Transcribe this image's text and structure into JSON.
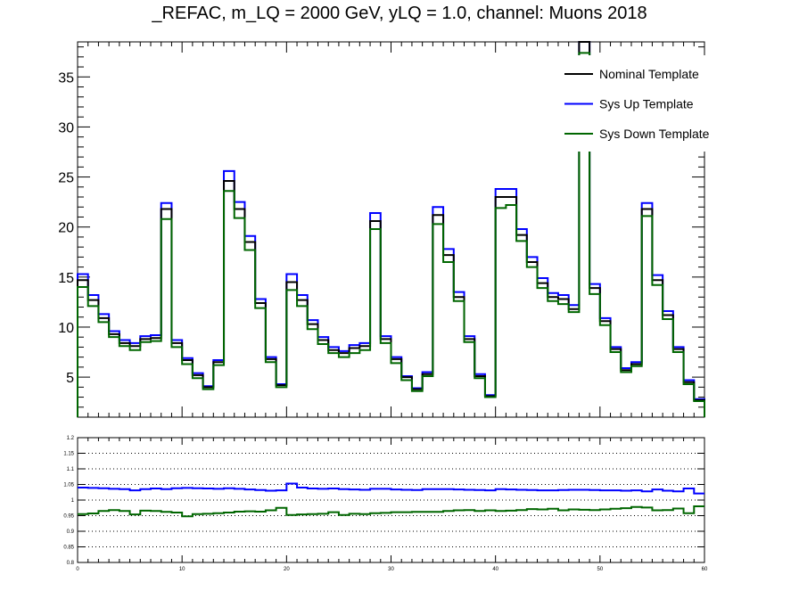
{
  "title": "_REFAC, m_LQ = 2000 GeV, yLQ = 1.0, channel: Muons 2018",
  "chart_data": [
    {
      "type": "line",
      "style": "step histogram",
      "title": "_REFAC, m_LQ = 2000 GeV, yLQ = 1.0, channel: Muons 2018",
      "xlabel": "",
      "ylabel": "",
      "xlim": [
        0,
        60
      ],
      "ylim": [
        1,
        38.5
      ],
      "y_ticks": [
        5,
        10,
        15,
        20,
        25,
        30,
        35
      ],
      "legend_position": "top-right",
      "legend": [
        "Nominal Template",
        "Sys Up Template",
        "Sys Down Template"
      ],
      "series": [
        {
          "name": "Nominal Template",
          "color": "#000000",
          "values": [
            14.7,
            12.7,
            10.9,
            9.3,
            8.4,
            8.1,
            8.8,
            8.9,
            21.8,
            8.4,
            6.7,
            5.2,
            4.0,
            6.5,
            24.6,
            21.8,
            18.5,
            12.4,
            6.8,
            4.2,
            14.5,
            12.7,
            10.3,
            8.7,
            7.7,
            7.4,
            7.9,
            8.1,
            20.6,
            8.8,
            6.8,
            5.0,
            3.8,
            5.3,
            21.2,
            17.2,
            13.0,
            8.8,
            5.1,
            3.1,
            23.0,
            23.0,
            19.2,
            16.5,
            14.4,
            13.0,
            12.8,
            11.8,
            38.5,
            13.9,
            10.6,
            7.8,
            5.7,
            6.3,
            21.8,
            14.7,
            11.2,
            7.8,
            4.5,
            2.7
          ]
        },
        {
          "name": "Sys Up Template",
          "color": "#0000ff",
          "values": [
            15.3,
            13.2,
            11.3,
            9.6,
            8.7,
            8.4,
            9.1,
            9.2,
            22.4,
            8.7,
            6.9,
            5.4,
            4.1,
            6.7,
            25.6,
            22.5,
            19.1,
            12.8,
            7.0,
            4.3,
            15.3,
            13.2,
            10.7,
            9.0,
            8.0,
            7.6,
            8.2,
            8.4,
            21.4,
            9.1,
            7.0,
            5.1,
            3.9,
            5.5,
            22.0,
            17.8,
            13.5,
            9.1,
            5.3,
            3.2,
            23.8,
            23.8,
            19.8,
            17.0,
            14.9,
            13.4,
            13.2,
            12.2,
            39.8,
            14.3,
            10.9,
            8.0,
            5.9,
            6.5,
            22.4,
            15.2,
            11.6,
            8.0,
            4.7,
            2.8
          ]
        },
        {
          "name": "Sys Down Template",
          "color": "#006600",
          "values": [
            14.0,
            12.1,
            10.5,
            9.0,
            8.1,
            7.7,
            8.5,
            8.6,
            20.8,
            8.0,
            6.3,
            4.9,
            3.8,
            6.2,
            23.6,
            20.9,
            17.7,
            11.9,
            6.5,
            4.0,
            13.7,
            12.1,
            9.8,
            8.3,
            7.4,
            7.0,
            7.4,
            7.7,
            19.8,
            8.4,
            6.4,
            4.7,
            3.6,
            5.1,
            20.3,
            16.5,
            12.6,
            8.5,
            4.9,
            3.0,
            21.9,
            22.2,
            18.6,
            16.0,
            13.9,
            12.6,
            12.3,
            11.5,
            37.4,
            13.3,
            10.2,
            7.5,
            5.5,
            6.1,
            21.1,
            14.2,
            10.8,
            7.5,
            4.3,
            2.6
          ]
        }
      ]
    },
    {
      "type": "line",
      "style": "step ratio",
      "xlabel": "",
      "ylabel": "",
      "xlim": [
        0,
        60
      ],
      "ylim": [
        0.8,
        1.2
      ],
      "x_ticks": [
        0,
        10,
        20,
        30,
        40,
        50,
        60
      ],
      "y_ticks": [
        0.8,
        0.85,
        0.9,
        0.95,
        1,
        1.05,
        1.1,
        1.15,
        1.2
      ],
      "grid": "horizontal dotted",
      "series": [
        {
          "name": "Sys Up Template",
          "color": "#0000ff",
          "values": [
            1.04,
            1.039,
            1.038,
            1.036,
            1.035,
            1.031,
            1.035,
            1.037,
            1.035,
            1.038,
            1.039,
            1.038,
            1.037,
            1.036,
            1.038,
            1.036,
            1.034,
            1.032,
            1.03,
            1.031,
            1.053,
            1.04,
            1.037,
            1.036,
            1.037,
            1.035,
            1.034,
            1.033,
            1.036,
            1.036,
            1.034,
            1.033,
            1.032,
            1.035,
            1.035,
            1.035,
            1.034,
            1.033,
            1.032,
            1.031,
            1.035,
            1.034,
            1.033,
            1.032,
            1.031,
            1.031,
            1.032,
            1.033,
            1.033,
            1.032,
            1.031,
            1.031,
            1.03,
            1.031,
            1.028,
            1.034,
            1.03,
            1.028,
            1.037,
            1.021
          ]
        },
        {
          "name": "Sys Down Template",
          "color": "#006600",
          "values": [
            0.955,
            0.957,
            0.965,
            0.968,
            0.965,
            0.954,
            0.966,
            0.965,
            0.962,
            0.96,
            0.948,
            0.955,
            0.956,
            0.958,
            0.96,
            0.963,
            0.964,
            0.963,
            0.967,
            0.975,
            0.952,
            0.954,
            0.955,
            0.956,
            0.961,
            0.952,
            0.956,
            0.955,
            0.958,
            0.959,
            0.961,
            0.961,
            0.962,
            0.962,
            0.962,
            0.965,
            0.967,
            0.968,
            0.965,
            0.967,
            0.965,
            0.966,
            0.968,
            0.971,
            0.97,
            0.972,
            0.967,
            0.97,
            0.969,
            0.968,
            0.97,
            0.972,
            0.974,
            0.978,
            0.976,
            0.967,
            0.968,
            0.973,
            0.958,
            0.98
          ]
        }
      ]
    }
  ]
}
